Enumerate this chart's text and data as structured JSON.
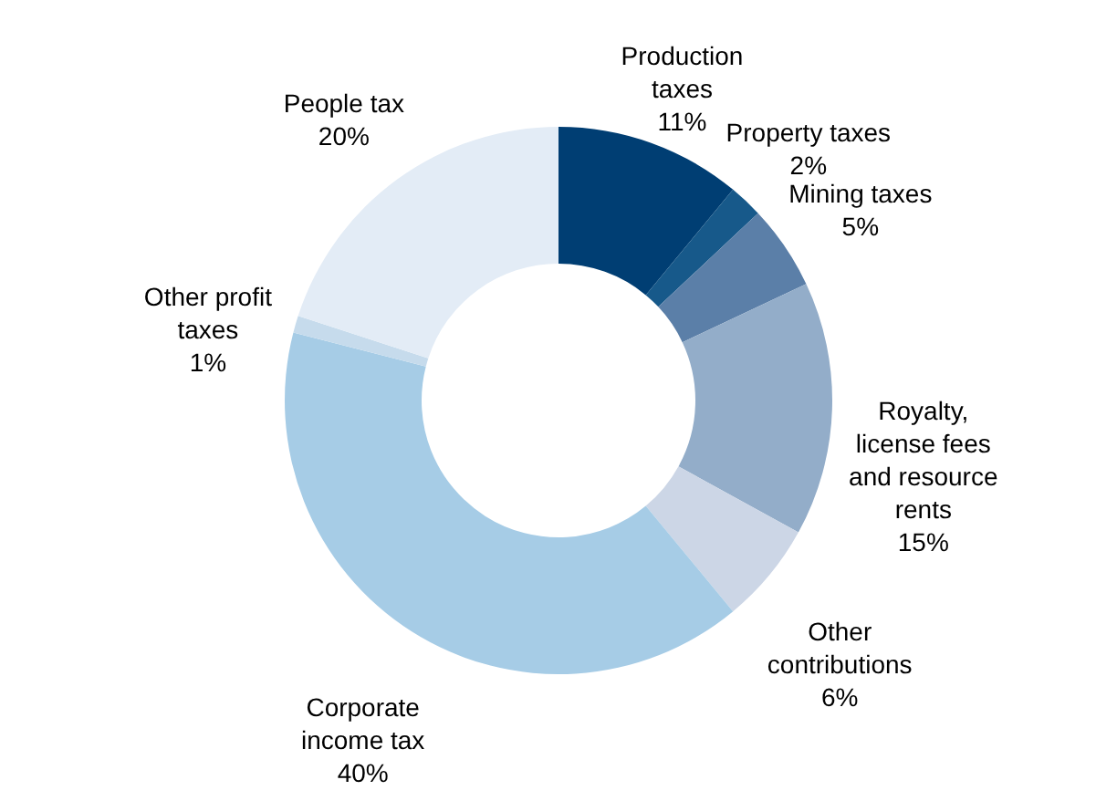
{
  "chart_data": {
    "type": "donut",
    "categories": [
      "Production taxes",
      "Property taxes",
      "Mining taxes",
      "Royalty, license fees and resource rents",
      "Other contributions",
      "Corporate income tax",
      "Other profit taxes",
      "People tax"
    ],
    "values": [
      11,
      2,
      5,
      15,
      6,
      40,
      1,
      20
    ],
    "value_labels": [
      "11%",
      "2%",
      "5%",
      "15%",
      "6%",
      "40%",
      "1%",
      "20%"
    ],
    "colors": [
      "#003e73",
      "#17598a",
      "#5b7fa8",
      "#93adc9",
      "#ccd6e6",
      "#a6cce6",
      "#c6dbec",
      "#e3ecf6"
    ]
  }
}
